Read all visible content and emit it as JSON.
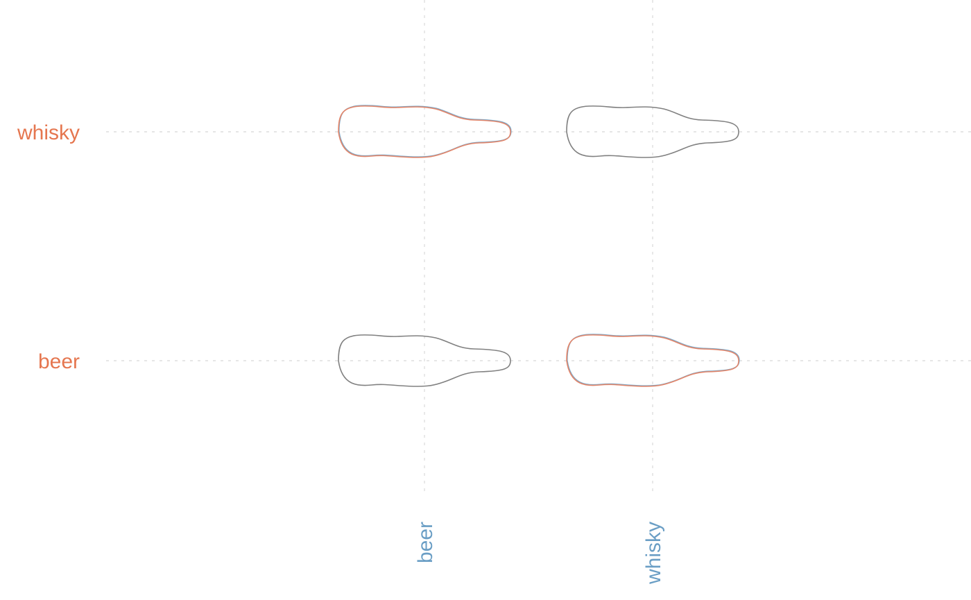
{
  "chart_data": {
    "type": "matrix",
    "x_categories": [
      "beer",
      "whisky"
    ],
    "y_categories": [
      "beer",
      "whisky"
    ],
    "cells": [
      {
        "x": "beer",
        "y": "whisky",
        "highlighted": true
      },
      {
        "x": "whisky",
        "y": "whisky",
        "highlighted": false
      },
      {
        "x": "beer",
        "y": "beer",
        "highlighted": false
      },
      {
        "x": "whisky",
        "y": "beer",
        "highlighted": true
      }
    ],
    "colors": {
      "x_label": "#6a9ec5",
      "y_label": "#e5764f",
      "grid": "#d8d8d8",
      "outline": "#808080",
      "highlight_orange": "#e5866a",
      "highlight_blue": "#7aa8c8"
    }
  }
}
